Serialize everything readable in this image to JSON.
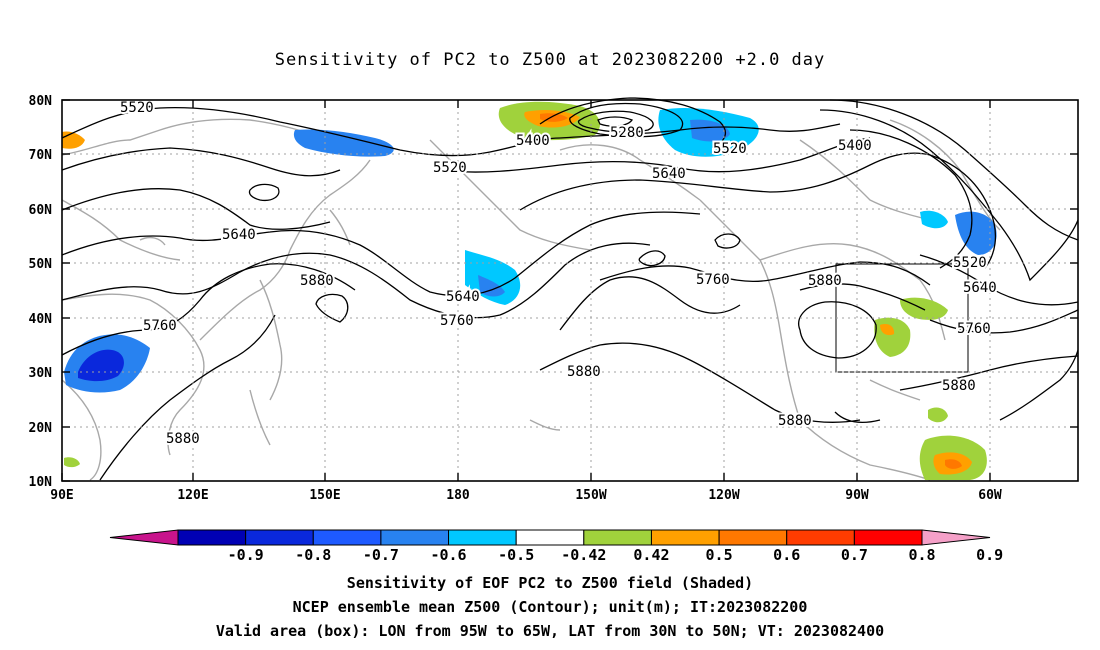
{
  "title": "Sensitivity of PC2 to Z500 at 2023082200 +2.0 day",
  "axes": {
    "lat_labels": [
      "80N",
      "70N",
      "60N",
      "50N",
      "40N",
      "30N",
      "20N",
      "10N"
    ],
    "lon_labels": [
      "90E",
      "120E",
      "150E",
      "180",
      "150W",
      "120W",
      "90W",
      "60W"
    ]
  },
  "contour_labels": [
    "5520",
    "5400",
    "5280",
    "5520",
    "5400",
    "5520",
    "5640",
    "5640",
    "5520",
    "5640",
    "5880",
    "5760",
    "5640",
    "5760",
    "5760",
    "5880",
    "5880",
    "5760",
    "5880",
    "5880",
    "5880"
  ],
  "colorbar": {
    "labels": [
      "-0.9",
      "-0.8",
      "-0.7",
      "-0.6",
      "-0.5",
      "-0.42",
      "0.42",
      "0.5",
      "0.6",
      "0.7",
      "0.8",
      "0.9"
    ],
    "colors": [
      "#c8148c",
      "#0000b4",
      "#0a28dc",
      "#1e5aff",
      "#2882f0",
      "#00c8ff",
      "#ffffff",
      "#a0d23c",
      "#ffa000",
      "#ff7800",
      "#ff3c00",
      "#ff0000",
      "#f5a0c8"
    ]
  },
  "box": {
    "lon_from": "95W",
    "lon_to": "65W",
    "lat_from": "30N",
    "lat_to": "50N"
  },
  "captions": {
    "line1": "Sensitivity of EOF PC2 to Z500 field (Shaded)",
    "line2": "NCEP ensemble mean Z500 (Contour); unit(m); IT:2023082200",
    "line3": "Valid area (box): LON from 95W to 65W, LAT from 30N to 50N; VT: 2023082400"
  }
}
